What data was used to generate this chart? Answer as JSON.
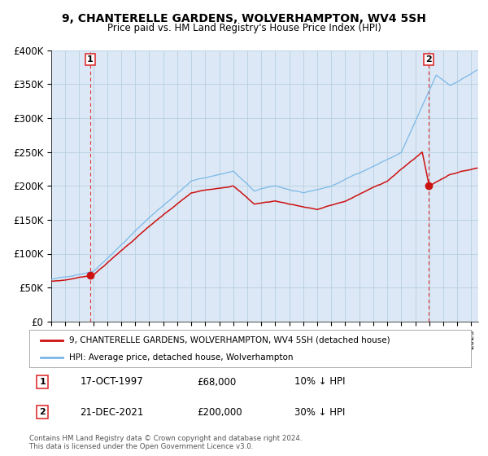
{
  "title": "9, CHANTERELLE GARDENS, WOLVERHAMPTON, WV4 5SH",
  "subtitle": "Price paid vs. HM Land Registry's House Price Index (HPI)",
  "ylim": [
    0,
    400000
  ],
  "yticks": [
    0,
    50000,
    100000,
    150000,
    200000,
    250000,
    300000,
    350000,
    400000
  ],
  "ytick_labels": [
    "£0",
    "£50K",
    "£100K",
    "£150K",
    "£200K",
    "£250K",
    "£300K",
    "£350K",
    "£400K"
  ],
  "xlim_start": 1995.0,
  "xlim_end": 2025.5,
  "hpi_color": "#7ab8e8",
  "price_color": "#cc1111",
  "vline_color": "#dd3333",
  "plot_bg_color": "#dce8f5",
  "background_color": "#ffffff",
  "grid_color": "#b8cfe0",
  "sale1_x": 1997.79,
  "sale1_y": 68000,
  "sale1_label": "1",
  "sale1_date": "17-OCT-1997",
  "sale1_price": "£68,000",
  "sale1_hpi": "10% ↓ HPI",
  "sale2_x": 2021.97,
  "sale2_y": 200000,
  "sale2_label": "2",
  "sale2_date": "21-DEC-2021",
  "sale2_price": "£200,000",
  "sale2_hpi": "30% ↓ HPI",
  "legend_line1": "9, CHANTERELLE GARDENS, WOLVERHAMPTON, WV4 5SH (detached house)",
  "legend_line2": "HPI: Average price, detached house, Wolverhampton",
  "footnote": "Contains HM Land Registry data © Crown copyright and database right 2024.\nThis data is licensed under the Open Government Licence v3.0."
}
